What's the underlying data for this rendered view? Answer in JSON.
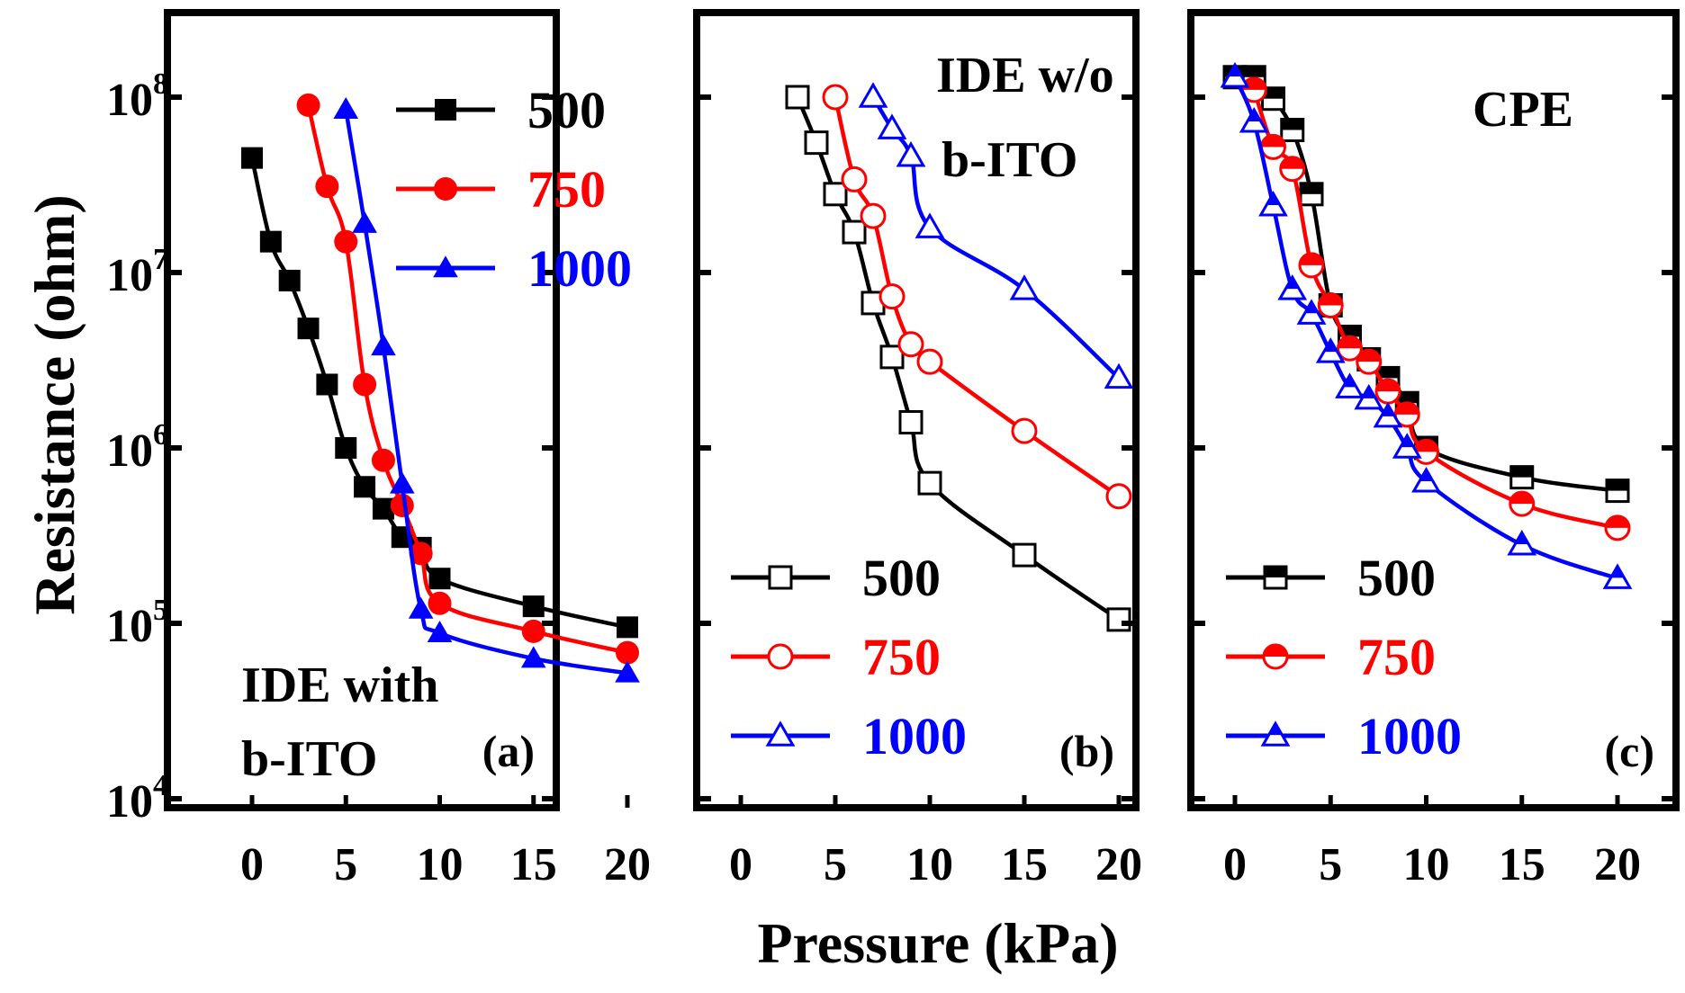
{
  "chart_data": {
    "type": "line",
    "ylabel": "Resistance (ohm)",
    "xlabel": "Pressure (kPa)",
    "yscale": "log",
    "ylim": [
      10000,
      300000000
    ],
    "xlim": [
      -3,
      22
    ],
    "y_tick_labels": [
      {
        "base": "10",
        "exp": "4"
      },
      {
        "base": "10",
        "exp": "5"
      },
      {
        "base": "10",
        "exp": "6"
      },
      {
        "base": "10",
        "exp": "7"
      },
      {
        "base": "10",
        "exp": "8"
      }
    ],
    "y_tick_values": [
      10000,
      100000,
      1000000,
      10000000,
      100000000
    ],
    "x_tick_labels": [
      "0",
      "5",
      "10",
      "15",
      "20"
    ],
    "x_tick_values": [
      0,
      5,
      10,
      15,
      20
    ],
    "colors": {
      "500": "#000000",
      "750": "#ff0000",
      "1000": "#0000ff"
    },
    "panels": [
      {
        "label": "(a)",
        "annotation": [
          "IDE with",
          "b-ITO"
        ],
        "annotation_position": "bottom-left",
        "legend_position": "top-right",
        "marker_fill": "filled",
        "series": [
          {
            "name": "500",
            "marker": "square",
            "x": [
              0,
              1,
              2,
              3,
              4,
              5,
              6,
              7,
              8,
              9,
              10,
              15,
              20
            ],
            "y": [
              45000000,
              15000000,
              9000000,
              4800000,
              2300000,
              1000000,
              600000,
              450000,
              310000,
              270000,
              180000,
              125000,
              95000
            ]
          },
          {
            "name": "750",
            "marker": "circle",
            "x": [
              3,
              4,
              5,
              6,
              7,
              8,
              9,
              10,
              15,
              20
            ],
            "y": [
              90000000,
              31000000,
              15000000,
              2300000,
              850000,
              470000,
              250000,
              130000,
              90000,
              68000
            ]
          },
          {
            "name": "1000",
            "marker": "triangle",
            "x": [
              5,
              6,
              7,
              8,
              9,
              10,
              15,
              20
            ],
            "y": [
              85000000,
              19000000,
              3800000,
              620000,
              120000,
              88000,
              63000,
              52000
            ]
          }
        ]
      },
      {
        "label": "(b)",
        "annotation": [
          "IDE w/o",
          "b-ITO"
        ],
        "annotation_position": "top-right",
        "legend_position": "bottom-left",
        "marker_fill": "open",
        "series": [
          {
            "name": "500",
            "marker": "square",
            "x": [
              3,
              4,
              5,
              6,
              7,
              8,
              9,
              10,
              15,
              20
            ],
            "y": [
              100000000,
              55000000,
              28000000,
              17000000,
              6700000,
              3300000,
              1400000,
              630000,
              245000,
              105000
            ]
          },
          {
            "name": "750",
            "marker": "circle",
            "x": [
              5,
              6,
              7,
              8,
              9,
              10,
              15,
              20
            ],
            "y": [
              100000000,
              34000000,
              21000000,
              7300000,
              3900000,
              3100000,
              1250000,
              530000
            ]
          },
          {
            "name": "1000",
            "marker": "triangle",
            "x": [
              7,
              8,
              9,
              10,
              15,
              20
            ],
            "y": [
              100000000,
              66000000,
              46000000,
              18000000,
              8000000,
              2500000
            ]
          }
        ]
      },
      {
        "label": "(c)",
        "annotation": [
          "CPE"
        ],
        "annotation_position": "top-right",
        "legend_position": "bottom-left",
        "marker_fill": "half",
        "series": [
          {
            "name": "500",
            "marker": "square",
            "x": [
              0,
              1,
              2,
              3,
              4,
              5,
              6,
              7,
              8,
              9,
              10,
              15,
              20
            ],
            "y": [
              130000000,
              130000000,
              98000000,
              65000000,
              28000000,
              6500000,
              4300000,
              3200000,
              2500000,
              1800000,
              1000000,
              680000,
              570000
            ]
          },
          {
            "name": "750",
            "marker": "circle",
            "x": [
              1,
              2,
              3,
              4,
              5,
              6,
              7,
              8,
              9,
              10,
              15,
              20
            ],
            "y": [
              110000000,
              52000000,
              39000000,
              11000000,
              6500000,
              3700000,
              3100000,
              2100000,
              1550000,
              950000,
              480000,
              350000
            ]
          },
          {
            "name": "1000",
            "marker": "triangle",
            "x": [
              0,
              1,
              2,
              3,
              4,
              5,
              6,
              7,
              8,
              9,
              10,
              15,
              20
            ],
            "y": [
              130000000,
              72000000,
              24000000,
              8000000,
              5800000,
              3500000,
              2200000,
              1900000,
              1500000,
              1000000,
              640000,
              280000,
              180000
            ]
          }
        ]
      }
    ]
  }
}
